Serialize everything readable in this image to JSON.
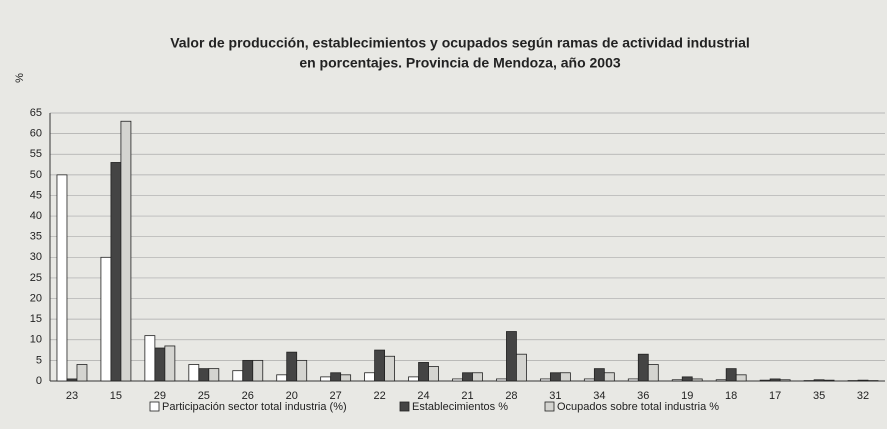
{
  "chart_data": {
    "type": "bar",
    "title": "Valor de producción, establecimientos y ocupados según ramas de actividad industrial",
    "subtitle": "en porcentajes. Provincia de Mendoza, año 2003",
    "y_label": "%",
    "categories": [
      "23",
      "15",
      "29",
      "25",
      "26",
      "20",
      "27",
      "22",
      "24",
      "21",
      "28",
      "31",
      "34",
      "36",
      "19",
      "18",
      "17",
      "35",
      "32"
    ],
    "series": [
      {
        "name": "Participación sector total industria (%)",
        "color": "#ffffff",
        "values": [
          50,
          30,
          11,
          4,
          2.5,
          1.5,
          1,
          2,
          1,
          0.5,
          0.5,
          0.5,
          0.5,
          0.5,
          0.3,
          0.3,
          0.2,
          0.1,
          0.1
        ]
      },
      {
        "name": "Establecimientos %",
        "color": "#444444",
        "values": [
          0.5,
          53,
          8,
          3,
          5,
          7,
          2,
          7.5,
          4.5,
          2,
          12,
          2,
          3,
          6.5,
          1,
          3,
          0.5,
          0.3,
          0.2
        ]
      },
      {
        "name": "Ocupados sobre total industria %",
        "color": "#d4d4d0",
        "values": [
          4,
          63,
          8.5,
          3,
          5,
          5,
          1.5,
          6,
          3.5,
          2,
          6.5,
          2,
          2,
          4,
          0.5,
          1.5,
          0.3,
          0.2,
          0.1
        ]
      }
    ],
    "ylim": [
      0,
      65
    ],
    "yticks": [
      0,
      5,
      10,
      15,
      20,
      25,
      30,
      35,
      40,
      45,
      50,
      55,
      60,
      65
    ],
    "grid": true,
    "legend": "bottom"
  }
}
